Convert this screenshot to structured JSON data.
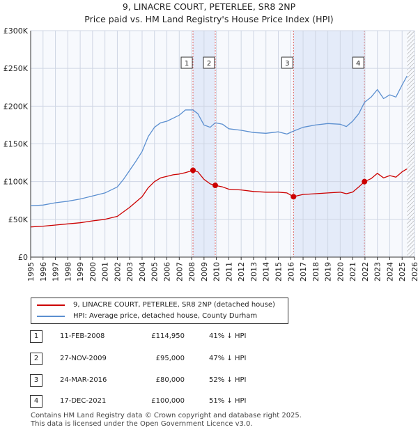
{
  "chart_data": {
    "type": "line",
    "title": "9, LINACRE COURT, PETERLEE, SR8 2NP",
    "subtitle": "Price paid vs. HM Land Registry's House Price Index (HPI)",
    "xlabel": "",
    "ylabel": "",
    "xlim": [
      1995,
      2026
    ],
    "ylim": [
      0,
      300000
    ],
    "y_ticks": [
      0,
      50000,
      100000,
      150000,
      200000,
      250000,
      300000
    ],
    "y_tick_labels": [
      "£0",
      "£50K",
      "£100K",
      "£150K",
      "£200K",
      "£250K",
      "£300K"
    ],
    "x_ticks": [
      1995,
      1996,
      1997,
      1998,
      1999,
      2000,
      2001,
      2002,
      2003,
      2004,
      2005,
      2006,
      2007,
      2008,
      2009,
      2010,
      2011,
      2012,
      2013,
      2014,
      2015,
      2016,
      2017,
      2018,
      2019,
      2020,
      2021,
      2022,
      2023,
      2024,
      2025,
      2026
    ],
    "x_tick_labels": [
      "1995",
      "1996",
      "1997",
      "1998",
      "1999",
      "2000",
      "2001",
      "2002",
      "2003",
      "2004",
      "2005",
      "2006",
      "2007",
      "2008",
      "2009",
      "2010",
      "2011",
      "2012",
      "2013",
      "2014",
      "2015",
      "2016",
      "2017",
      "2018",
      "2019",
      "2020",
      "2021",
      "2022",
      "2023",
      "2024",
      "2025",
      "2026"
    ],
    "grid": true,
    "shaded_ranges": [
      [
        2008.11,
        2009.91
      ],
      [
        2016.23,
        2021.96
      ]
    ],
    "hatched_from": 2025.4,
    "series": [
      {
        "name": "9, LINACRE COURT, PETERLEE, SR8 2NP (detached house)",
        "color": "#cc0000",
        "x": [
          1995.0,
          1996.0,
          1997.0,
          1998.0,
          1999.0,
          2000.0,
          2001.0,
          2002.0,
          2002.5,
          2003.0,
          2003.5,
          2004.0,
          2004.5,
          2005.0,
          2005.5,
          2006.0,
          2006.5,
          2007.0,
          2007.5,
          2008.11,
          2008.5,
          2009.0,
          2009.5,
          2009.91,
          2010.5,
          2011.0,
          2012.0,
          2013.0,
          2014.0,
          2015.0,
          2015.7,
          2016.23,
          2016.7,
          2017.0,
          2018.0,
          2019.0,
          2020.0,
          2020.5,
          2021.0,
          2021.5,
          2021.96,
          2022.5,
          2023.0,
          2023.5,
          2024.0,
          2024.5,
          2025.0,
          2025.4
        ],
        "values": [
          40000,
          41000,
          42500,
          44000,
          45500,
          48000,
          50000,
          54000,
          60000,
          66000,
          73000,
          80000,
          92000,
          100000,
          105000,
          107000,
          109000,
          110000,
          112000,
          114950,
          113000,
          103000,
          97000,
          95000,
          93000,
          90000,
          89000,
          87000,
          86000,
          86000,
          85000,
          80000,
          82000,
          83000,
          84000,
          85000,
          86000,
          84000,
          86000,
          93000,
          100000,
          104000,
          111000,
          105000,
          108000,
          106000,
          113000,
          117000
        ]
      },
      {
        "name": "HPI: Average price, detached house, County Durham",
        "color": "#5b8fd0",
        "x": [
          1995.0,
          1996.0,
          1997.0,
          1998.0,
          1999.0,
          2000.0,
          2001.0,
          2002.0,
          2002.5,
          2003.0,
          2003.5,
          2004.0,
          2004.5,
          2005.0,
          2005.5,
          2006.0,
          2006.5,
          2007.0,
          2007.5,
          2008.11,
          2008.5,
          2009.0,
          2009.5,
          2009.91,
          2010.5,
          2011.0,
          2012.0,
          2013.0,
          2014.0,
          2015.0,
          2015.7,
          2016.23,
          2016.7,
          2017.0,
          2018.0,
          2019.0,
          2020.0,
          2020.5,
          2021.0,
          2021.5,
          2021.96,
          2022.5,
          2023.0,
          2023.5,
          2024.0,
          2024.5,
          2025.0,
          2025.4
        ],
        "values": [
          68000,
          69000,
          72000,
          74000,
          77000,
          81000,
          85000,
          93000,
          103000,
          115000,
          127000,
          140000,
          160000,
          172000,
          178000,
          180000,
          184000,
          188000,
          195000,
          195000,
          190000,
          175000,
          172000,
          178000,
          176000,
          170000,
          168000,
          165000,
          164000,
          166000,
          163000,
          167000,
          170000,
          172000,
          175000,
          177000,
          176000,
          173000,
          180000,
          190000,
          205000,
          212000,
          222000,
          210000,
          215000,
          212000,
          228000,
          240000
        ]
      }
    ],
    "markers": [
      {
        "label": "1",
        "x": 2008.11,
        "value": 114950
      },
      {
        "label": "2",
        "x": 2009.91,
        "value": 95000
      },
      {
        "label": "3",
        "x": 2016.23,
        "value": 80000
      },
      {
        "label": "4",
        "x": 2021.96,
        "value": 100000
      }
    ]
  },
  "legend": {
    "property_label": "9, LINACRE COURT, PETERLEE, SR8 2NP (detached house)",
    "hpi_label": "HPI: Average price, detached house, County Durham"
  },
  "transactions": [
    {
      "num": "1",
      "date": "11-FEB-2008",
      "price": "£114,950",
      "pct": "41% ↓ HPI"
    },
    {
      "num": "2",
      "date": "27-NOV-2009",
      "price": "£95,000",
      "pct": "47% ↓ HPI"
    },
    {
      "num": "3",
      "date": "24-MAR-2016",
      "price": "£80,000",
      "pct": "52% ↓ HPI"
    },
    {
      "num": "4",
      "date": "17-DEC-2021",
      "price": "£100,000",
      "pct": "51% ↓ HPI"
    }
  ],
  "footer": {
    "line1": "Contains HM Land Registry data © Crown copyright and database right 2025.",
    "line2": "This data is licensed under the Open Government Licence v3.0."
  }
}
